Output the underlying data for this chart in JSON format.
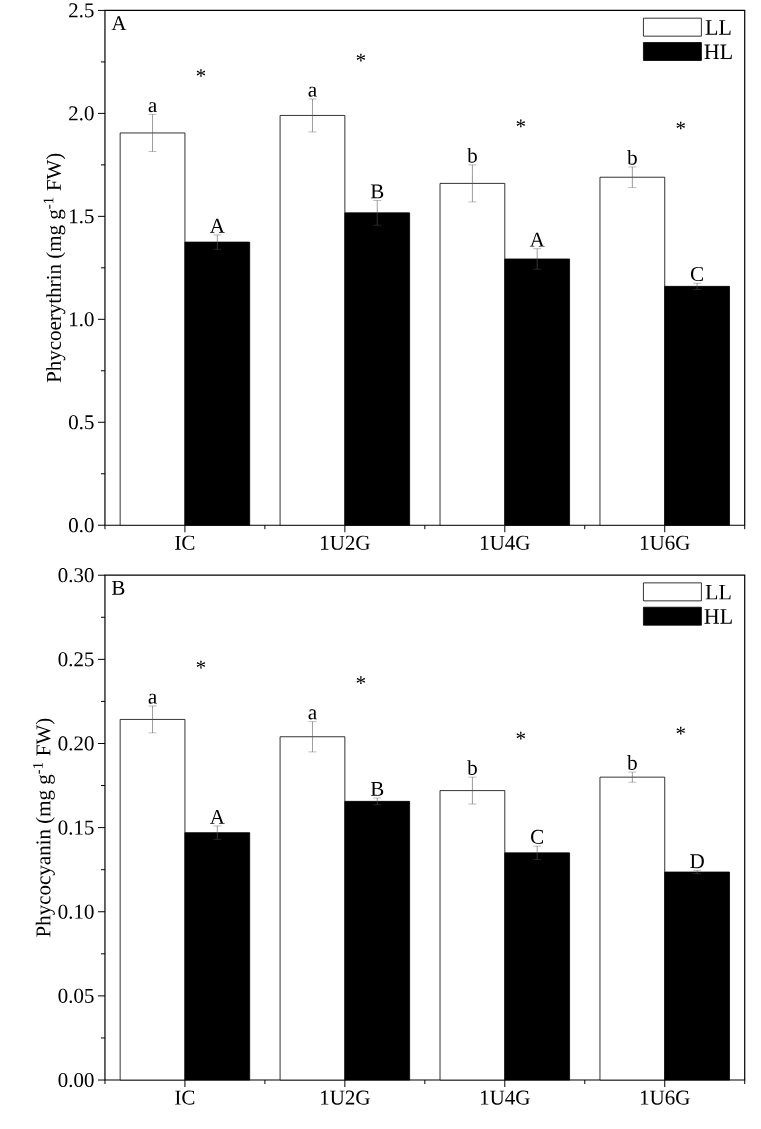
{
  "chart_data": [
    {
      "type": "bar",
      "title": "A",
      "ylabel": "Phycoerythrin (mg g$^{-1}$ FW)",
      "categories": [
        "IC",
        "1U2G",
        "1U4G",
        "1U6G"
      ],
      "series": [
        {
          "name": "LL",
          "color": "#ffffff",
          "values": [
            1.905,
            1.99,
            1.66,
            1.69
          ],
          "errors": [
            0.09,
            0.08,
            0.09,
            0.05
          ],
          "value_labels": [
            "a",
            "a",
            "b",
            "b"
          ]
        },
        {
          "name": "HL",
          "color": "#000000",
          "values": [
            1.375,
            1.517,
            1.293,
            1.16
          ],
          "errors": [
            0.035,
            0.06,
            0.05,
            0.015
          ],
          "value_labels": [
            "A",
            "B",
            "A",
            "C"
          ]
        }
      ],
      "ylim": [
        0,
        2.5
      ],
      "yticks": [
        {
          "value": 0,
          "label": "0.0"
        },
        0.5,
        {
          "value": 1,
          "label": "1.0"
        },
        1.5,
        {
          "value": 2,
          "label": "2.0"
        },
        2.5
      ],
      "annotations": [
        "*",
        "*",
        "*",
        "*"
      ],
      "legend": "top right"
    },
    {
      "type": "bar",
      "title": "B",
      "ylabel": "Phycocyanin (mg g$^{-1}$ FW)",
      "categories": [
        "IC",
        "1U2G",
        "1U4G",
        "1U6G"
      ],
      "series": [
        {
          "name": "LL",
          "color": "#ffffff",
          "values": [
            0.2143,
            0.204,
            0.172,
            0.18
          ],
          "errors": [
            0.008,
            0.009,
            0.008,
            0.003
          ],
          "value_labels": [
            "a",
            "a",
            "b",
            "b"
          ]
        },
        {
          "name": "HL",
          "color": "#000000",
          "values": [
            0.147,
            0.1656,
            0.135,
            0.1236
          ],
          "errors": [
            0.004,
            0.002,
            0.004,
            0.001
          ],
          "value_labels": [
            "A",
            "B",
            "C",
            "D"
          ]
        }
      ],
      "ylim": [
        0,
        0.3
      ],
      "yticks": [
        {
          "value": 0,
          "label": "0.00"
        },
        0.05,
        {
          "value": 0.1,
          "label": "0.10"
        },
        0.15,
        {
          "value": 0.2,
          "label": "0.20"
        },
        0.25,
        {
          "value": 0.3,
          "label": "0.30"
        }
      ],
      "annotations": [
        "*",
        "*",
        "*",
        "*"
      ],
      "legend": "top right"
    }
  ]
}
